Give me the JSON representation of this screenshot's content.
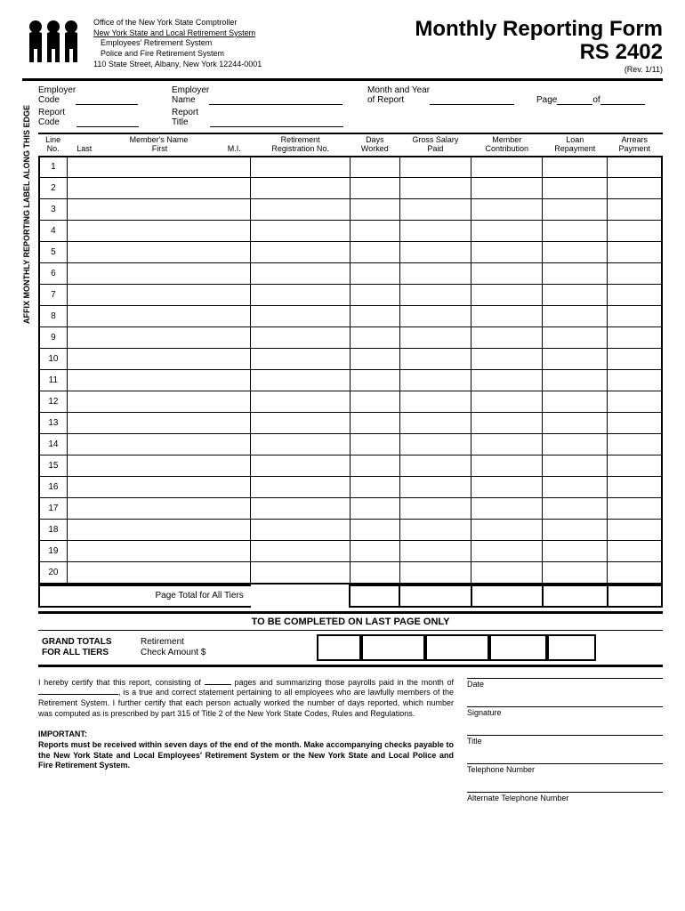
{
  "header": {
    "office_line1": "Office of the New York State Comptroller",
    "office_line2": "New York State and Local Retirement System",
    "office_line3": "Employees' Retirement System",
    "office_line4": "Police and Fire Retirement System",
    "office_line5": "110 State Street, Albany, New York 12244-0001",
    "title_line1": "Monthly Reporting Form",
    "title_line2": "RS 2402",
    "revision": "(Rev. 1/11)"
  },
  "vertical_label": "AFFIX MONTHLY REPORTING LABEL ALONG THIS EDGE",
  "form_fields": {
    "employer_code": "Employer\nCode",
    "employer_name": "Employer\nName",
    "month_year": "Month and Year\nof Report",
    "page": "Page",
    "of": "of",
    "report_code": "Report\nCode",
    "report_title": "Report\nTitle"
  },
  "columns": {
    "line_no": {
      "l1": "Line",
      "l2": "No."
    },
    "name": {
      "top": "Member's Name",
      "last": "Last",
      "first": "First",
      "mi": "M.I."
    },
    "reg": {
      "l1": "Retirement",
      "l2": "Registration No."
    },
    "days": {
      "l1": "Days",
      "l2": "Worked"
    },
    "gross": {
      "l1": "Gross Salary",
      "l2": "Paid"
    },
    "member": {
      "l1": "Member",
      "l2": "Contribution"
    },
    "loan": {
      "l1": "Loan",
      "l2": "Repayment"
    },
    "arrears": {
      "l1": "Arrears",
      "l2": "Payment"
    }
  },
  "rows": [
    "1",
    "2",
    "3",
    "4",
    "5",
    "6",
    "7",
    "8",
    "9",
    "10",
    "11",
    "12",
    "13",
    "14",
    "15",
    "16",
    "17",
    "18",
    "19",
    "20"
  ],
  "page_total_label": "Page Total for All Tiers",
  "section_banner": "TO BE COMPLETED ON LAST PAGE ONLY",
  "grand_totals": {
    "left_l1": "GRAND TOTALS",
    "left_l2": "FOR ALL TIERS",
    "mid_l1": "Retirement",
    "mid_l2": "Check Amount $"
  },
  "certification": {
    "text_before_pages": "I hereby certify that this report, consisting of ",
    "text_after_pages": " pages and summarizing those payrolls paid in the month of ",
    "text_after_month": ", is a true and correct statement pertaining to all employees who are lawfully members of the Retirement System. I further certify that each person actually worked the number of days reported, which number was computed as is prescribed by part 315 of Title 2 of the New York State Codes, Rules and Regulations."
  },
  "important": {
    "label": "IMPORTANT:",
    "text": "Reports must be received within seven days of the end of the month. Make accompanying checks payable to the New York State and Local Employees' Retirement System or the New York State and Local Police and Fire Retirement System."
  },
  "signature_labels": {
    "date": "Date",
    "signature": "Signature",
    "title": "Title",
    "telephone": "Telephone Number",
    "alt_telephone": "Alternate Telephone Number"
  }
}
